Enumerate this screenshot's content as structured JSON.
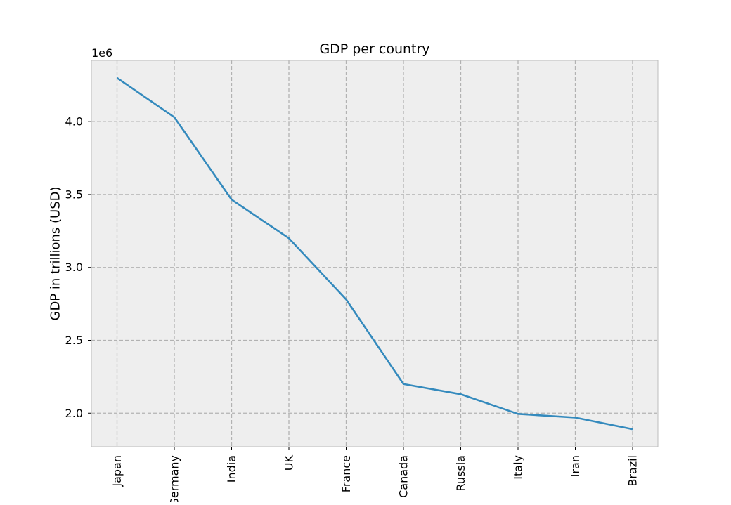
{
  "chart_data": {
    "type": "line",
    "title": "GDP per country",
    "xlabel": "",
    "ylabel": "GDP in trillions (USD)",
    "offset_label": "1e6",
    "categories": [
      "Japan",
      "Germany",
      "India",
      "UK",
      "France",
      "Canada",
      "Russia",
      "Italy",
      "Iran",
      "Brazil"
    ],
    "series": [
      {
        "values": [
          4300000,
          4030000,
          3465000,
          3200000,
          2780000,
          2200000,
          2130000,
          1995000,
          1970000,
          1890000
        ]
      }
    ],
    "ylim": [
      1770000,
      4420000
    ],
    "yticks": [
      "2.0",
      "2.5",
      "3.0",
      "3.5",
      "4.0"
    ],
    "ytick_values": [
      2000000,
      2500000,
      3000000,
      3500000,
      4000000
    ],
    "grid": true,
    "colors": {
      "line": "#348ABD",
      "plot_background": "#EEEEEE",
      "grid": "#B2B2B2",
      "frame": "#BCBCBC"
    }
  }
}
